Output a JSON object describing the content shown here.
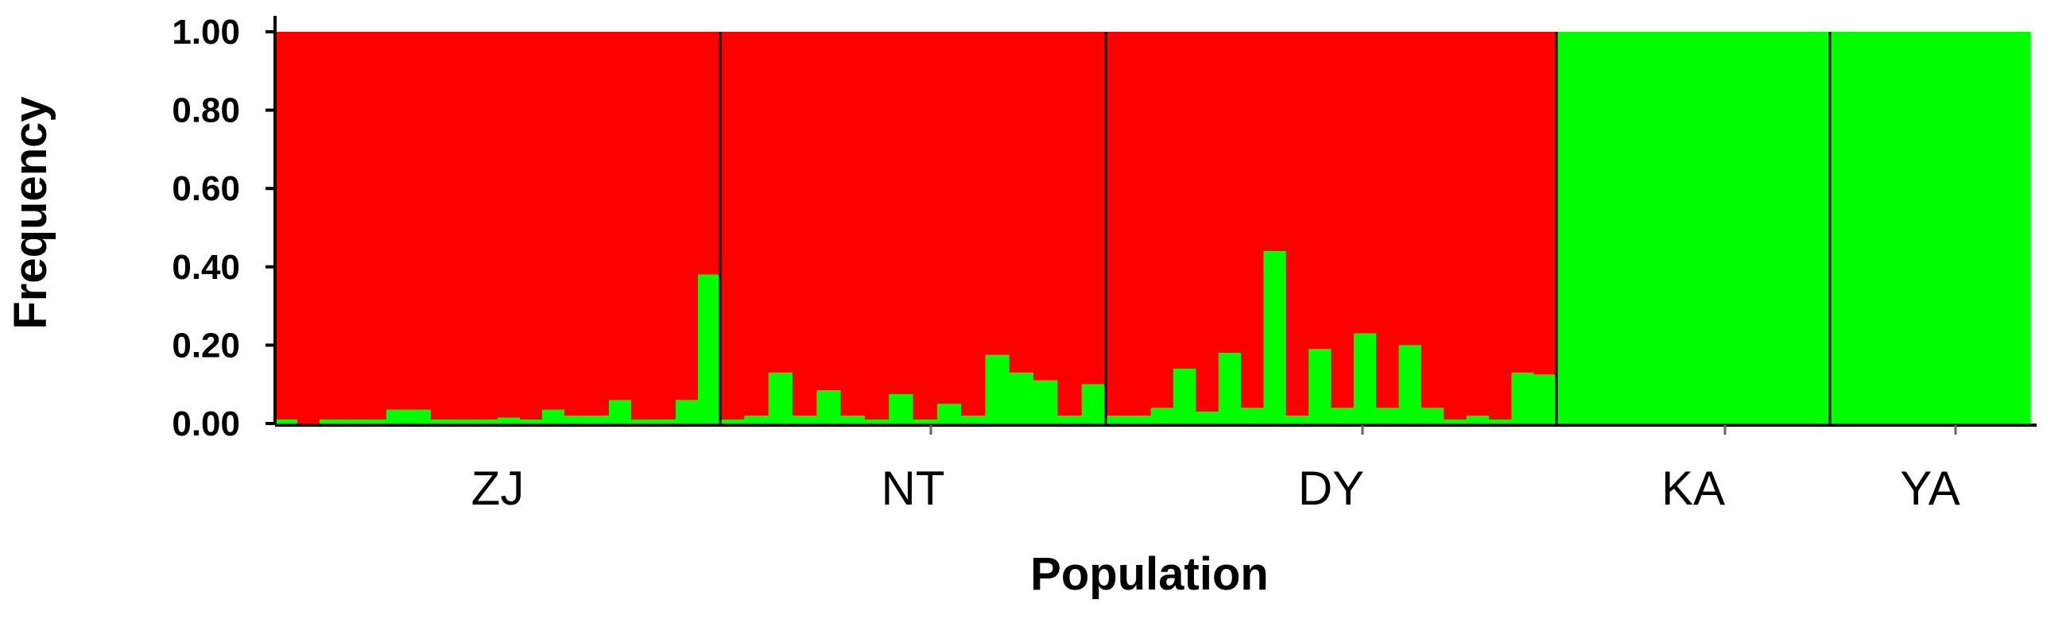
{
  "chart_data": {
    "type": "bar",
    "subtype": "stacked-admixture",
    "xlabel": "Population",
    "ylabel": "Frequency",
    "ylim": [
      0,
      1
    ],
    "yticks": [
      "0.00",
      "0.20",
      "0.40",
      "0.60",
      "0.80",
      "1.00"
    ],
    "colors": {
      "cluster_1": "#ff0000",
      "cluster_2": "#00ff00",
      "divider": "#000000",
      "axis": "#000000"
    },
    "series_note": "Each individual bar: green = cluster 2 fraction, red = remainder (1 - green)",
    "populations": [
      {
        "label": "ZJ",
        "green_values": [
          0.01,
          0.0,
          0.01,
          0.01,
          0.01,
          0.035,
          0.035,
          0.01,
          0.01,
          0.01,
          0.015,
          0.01,
          0.035,
          0.02,
          0.02,
          0.06,
          0.01,
          0.01,
          0.06,
          0.38
        ]
      },
      {
        "label": "NT",
        "green_values": [
          0.01,
          0.02,
          0.13,
          0.02,
          0.085,
          0.02,
          0.01,
          0.075,
          0.01,
          0.05,
          0.02,
          0.175,
          0.13,
          0.11,
          0.02,
          0.1
        ]
      },
      {
        "label": "DY",
        "green_values": [
          0.02,
          0.02,
          0.04,
          0.14,
          0.03,
          0.18,
          0.04,
          0.44,
          0.02,
          0.19,
          0.04,
          0.23,
          0.04,
          0.2,
          0.04,
          0.01,
          0.02,
          0.01,
          0.13,
          0.125
        ]
      },
      {
        "label": "KA",
        "green_values": [
          1.0
        ]
      },
      {
        "label": "YA",
        "green_values": [
          1.0
        ]
      }
    ]
  }
}
